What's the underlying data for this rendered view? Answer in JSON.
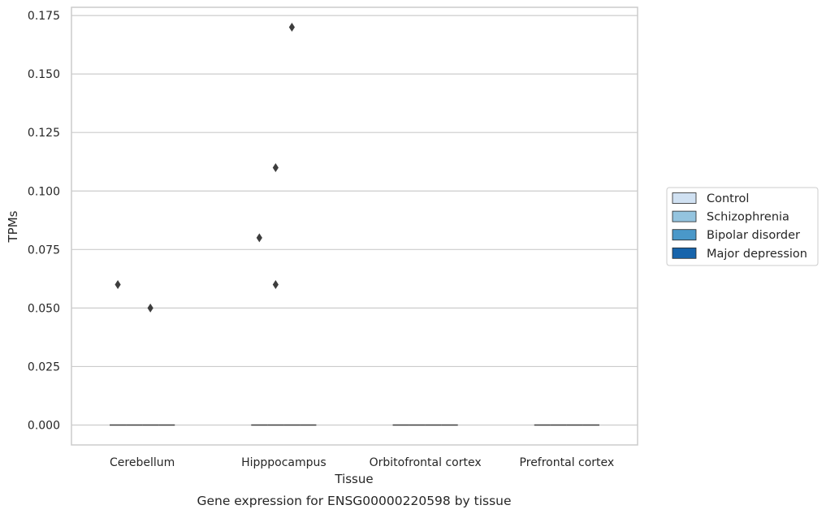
{
  "chart_data": {
    "type": "box",
    "caption": "Gene expression for ENSG00000220598 by tissue",
    "xlabel": "Tissue",
    "ylabel": "TPMs",
    "ylim": [
      -0.0085,
      0.1785
    ],
    "yticks": [
      0.0,
      0.025,
      0.05,
      0.075,
      0.1,
      0.125,
      0.15,
      0.175
    ],
    "ytick_labels": [
      "0.000",
      "0.025",
      "0.050",
      "0.075",
      "0.100",
      "0.125",
      "0.150",
      "0.175"
    ],
    "grid": "horizontal",
    "categories": [
      "Cerebellum",
      "Hipppocampus",
      "Orbitofrontal cortex",
      "Prefrontal cortex"
    ],
    "legend": {
      "position": "right",
      "entries": [
        {
          "label": "Control",
          "color": "#d0e1f2"
        },
        {
          "label": "Schizophrenia",
          "color": "#94c4df"
        },
        {
          "label": "Bipolar disorder",
          "color": "#4a98c9"
        },
        {
          "label": "Major depression",
          "color": "#1764ab"
        }
      ]
    },
    "series": [
      {
        "name": "Control",
        "medians": [
          0,
          0,
          0,
          0
        ],
        "outliers": [
          [
            0.06
          ],
          [
            0.08
          ],
          [],
          []
        ]
      },
      {
        "name": "Schizophrenia",
        "medians": [
          0,
          0,
          0,
          0
        ],
        "outliers": [
          [],
          [
            0.11,
            0.06
          ],
          [],
          []
        ]
      },
      {
        "name": "Bipolar disorder",
        "medians": [
          0,
          0,
          0,
          0
        ],
        "outliers": [
          [
            0.05
          ],
          [
            0.17
          ],
          [],
          []
        ]
      },
      {
        "name": "Major depression",
        "medians": [
          0,
          0,
          0,
          0
        ],
        "outliers": [
          [],
          [],
          [],
          []
        ]
      }
    ],
    "colors": {
      "grid": "#cccccc",
      "axes_edge": "#cccccc",
      "median_line": "#3d3d3d",
      "outlier": "#3d3d3d",
      "text": "#262626"
    }
  }
}
